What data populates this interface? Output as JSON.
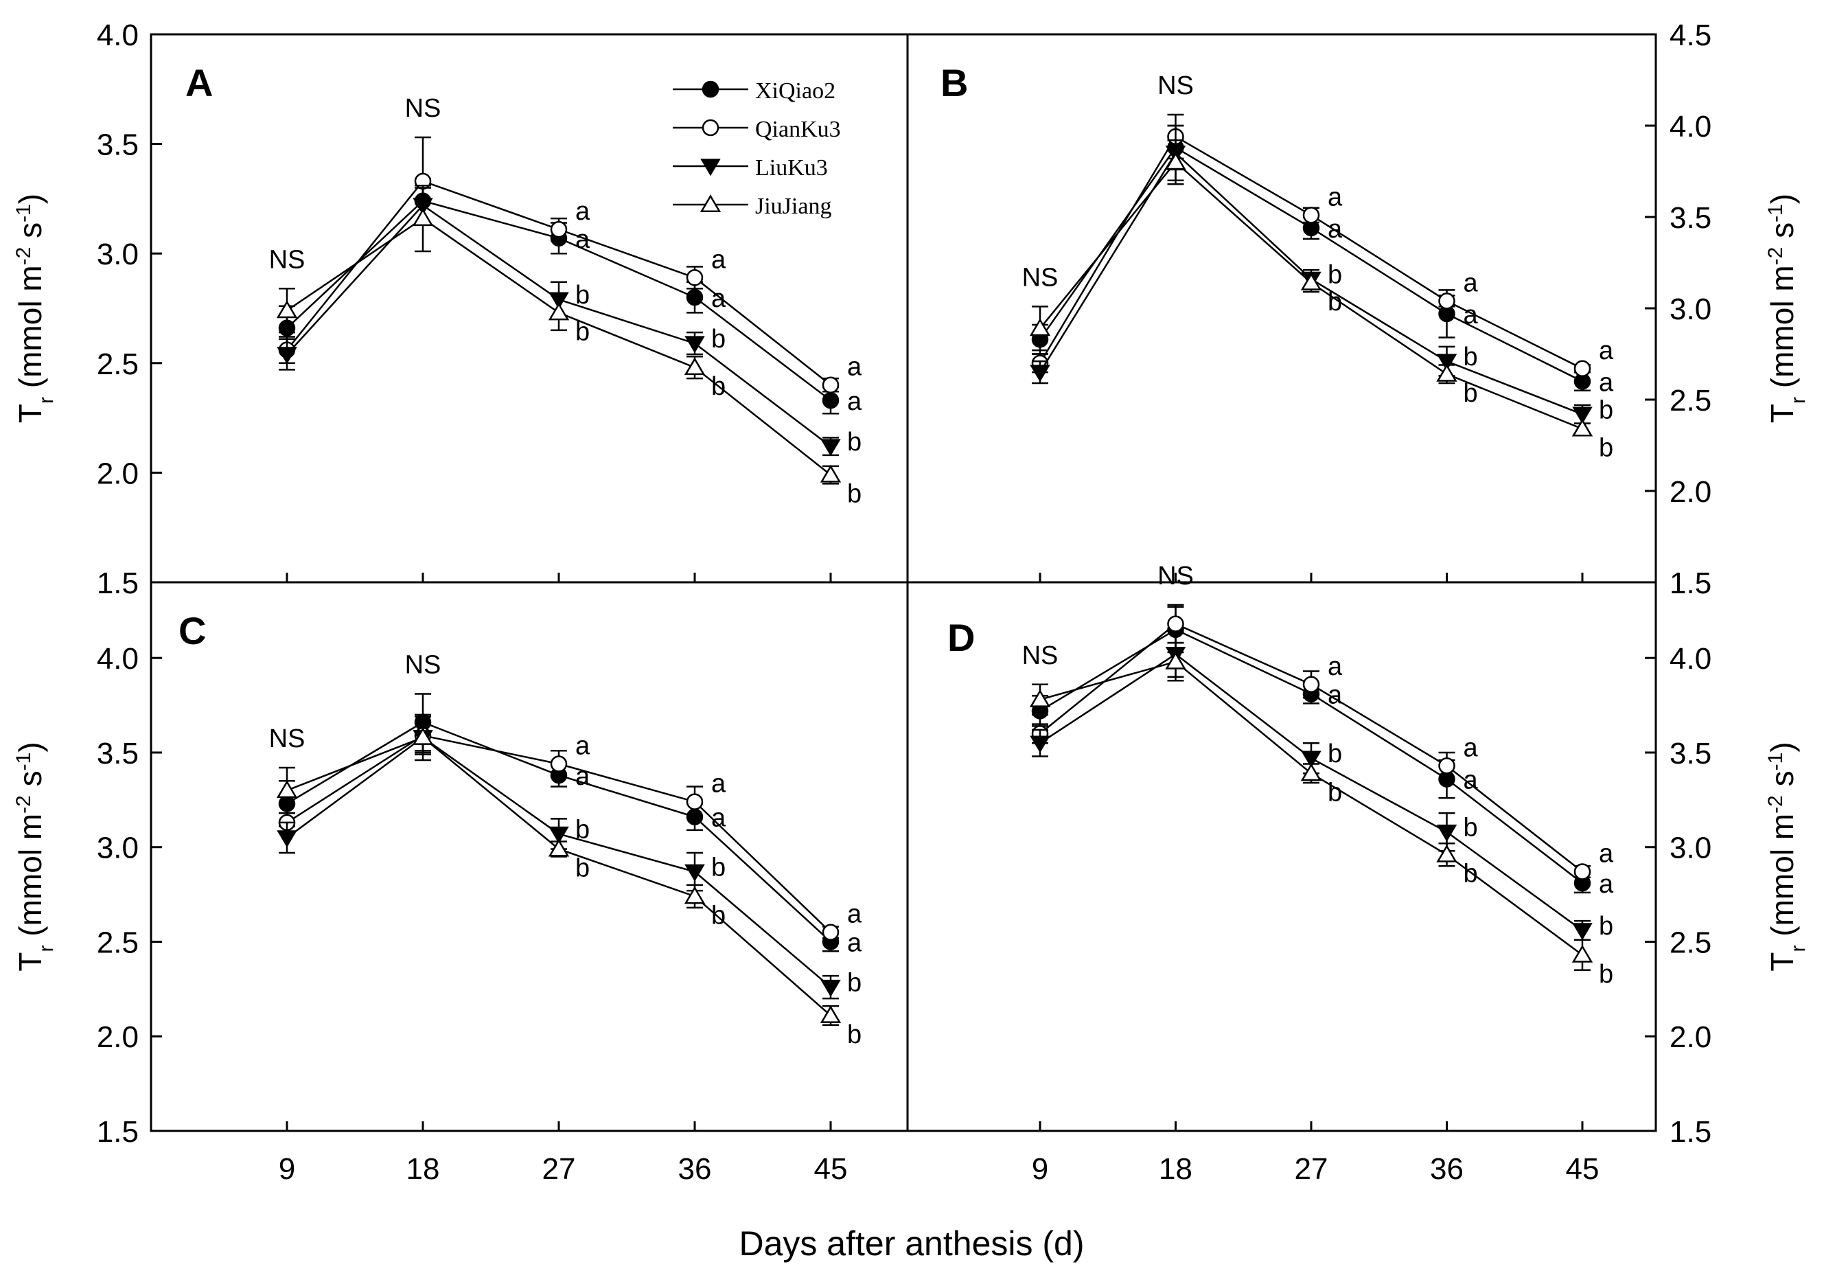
{
  "figure": {
    "xlabel": "Days after anthesis (d)",
    "ylabel_main": "T",
    "ylabel_sub": "r",
    "ylabel_unit_open": " (mmol m",
    "ylabel_exp1": "-2",
    "ylabel_mid": " s",
    "ylabel_exp2": "-1",
    "ylabel_close": ")",
    "colors": {
      "axis": "#000000",
      "line": "#000000",
      "marker_fill": "#000000",
      "background": "#ffffff"
    }
  },
  "legend": {
    "items": [
      {
        "label": "XiQiao2",
        "marker": "filled-circle"
      },
      {
        "label": "QianKu3",
        "marker": "open-circle"
      },
      {
        "label": "LiuKu3",
        "marker": "filled-triangle-down"
      },
      {
        "label": "JiuJiang",
        "marker": "open-triangle-up"
      }
    ]
  },
  "chart_data": [
    {
      "panel": "A",
      "type": "line",
      "x": [
        9,
        18,
        27,
        36,
        45
      ],
      "x_ticks": [
        "9",
        "18",
        "27",
        "36",
        "45"
      ],
      "ylim": [
        1.5,
        4.0
      ],
      "y_ticks": [
        "1.5",
        "2.0",
        "2.5",
        "3.0",
        "3.5",
        "4.0"
      ],
      "y_axis_side": "left",
      "series": [
        {
          "name": "XiQiao2",
          "values": [
            2.66,
            3.24,
            3.07,
            2.8,
            2.33
          ],
          "errors": [
            0.1,
            0.1,
            0.07,
            0.07,
            0.06
          ]
        },
        {
          "name": "QianKu3",
          "values": [
            2.56,
            3.33,
            3.11,
            2.89,
            2.4
          ],
          "errors": [
            0.06,
            0.2,
            0.05,
            0.05,
            0.03
          ]
        },
        {
          "name": "LiuKu3",
          "values": [
            2.54,
            3.22,
            2.79,
            2.59,
            2.12
          ],
          "errors": [
            0.07,
            0.08,
            0.08,
            0.05,
            0.04
          ]
        },
        {
          "name": "JiuJiang",
          "values": [
            2.74,
            3.16,
            2.73,
            2.48,
            1.99
          ],
          "errors": [
            0.1,
            0.15,
            0.08,
            0.05,
            0.04
          ]
        }
      ],
      "annotations": [
        {
          "x": 9,
          "text": "NS"
        },
        {
          "x": 18,
          "text": "NS"
        },
        {
          "x": 27,
          "series": "QianKu3",
          "text": "a"
        },
        {
          "x": 27,
          "series": "XiQiao2",
          "text": "a"
        },
        {
          "x": 27,
          "series": "LiuKu3",
          "text": "b"
        },
        {
          "x": 27,
          "series": "JiuJiang",
          "text": "b"
        },
        {
          "x": 36,
          "series": "QianKu3",
          "text": "a"
        },
        {
          "x": 36,
          "series": "XiQiao2",
          "text": "a"
        },
        {
          "x": 36,
          "series": "LiuKu3",
          "text": "b"
        },
        {
          "x": 36,
          "series": "JiuJiang",
          "text": "b"
        },
        {
          "x": 45,
          "series": "QianKu3",
          "text": "a"
        },
        {
          "x": 45,
          "series": "XiQiao2",
          "text": "a"
        },
        {
          "x": 45,
          "series": "LiuKu3",
          "text": "b"
        },
        {
          "x": 45,
          "series": "JiuJiang",
          "text": "b"
        }
      ]
    },
    {
      "panel": "B",
      "type": "line",
      "x": [
        9,
        18,
        27,
        36,
        45
      ],
      "x_ticks": [
        "9",
        "18",
        "27",
        "36",
        "45"
      ],
      "ylim": [
        1.5,
        4.5
      ],
      "y_ticks": [
        "1.5",
        "2.0",
        "2.5",
        "3.0",
        "3.5",
        "4.0",
        "4.5"
      ],
      "y_axis_side": "right",
      "series": [
        {
          "name": "XiQiao2",
          "values": [
            2.83,
            3.88,
            3.44,
            2.97,
            2.6
          ],
          "errors": [
            0.08,
            0.12,
            0.06,
            0.13,
            0.05
          ]
        },
        {
          "name": "QianKu3",
          "values": [
            2.7,
            3.94,
            3.51,
            3.04,
            2.67
          ],
          "errors": [
            0.05,
            0.12,
            0.04,
            0.03,
            0.02
          ]
        },
        {
          "name": "LiuKu3",
          "values": [
            2.65,
            3.85,
            3.16,
            2.71,
            2.42
          ],
          "errors": [
            0.06,
            0.15,
            0.05,
            0.08,
            0.05
          ]
        },
        {
          "name": "JiuJiang",
          "values": [
            2.89,
            3.8,
            3.14,
            2.64,
            2.34
          ],
          "errors": [
            0.12,
            0.12,
            0.05,
            0.05,
            0.03
          ]
        }
      ],
      "annotations": [
        {
          "x": 9,
          "text": "NS"
        },
        {
          "x": 18,
          "text": "NS"
        },
        {
          "x": 27,
          "series": "QianKu3",
          "text": "a"
        },
        {
          "x": 27,
          "series": "XiQiao2",
          "text": "a"
        },
        {
          "x": 27,
          "series": "LiuKu3",
          "text": "b"
        },
        {
          "x": 27,
          "series": "JiuJiang",
          "text": "b"
        },
        {
          "x": 36,
          "series": "QianKu3",
          "text": "a"
        },
        {
          "x": 36,
          "series": "XiQiao2",
          "text": "a"
        },
        {
          "x": 36,
          "series": "LiuKu3",
          "text": "b"
        },
        {
          "x": 36,
          "series": "JiuJiang",
          "text": "b"
        },
        {
          "x": 45,
          "series": "QianKu3",
          "text": "a"
        },
        {
          "x": 45,
          "series": "XiQiao2",
          "text": "a"
        },
        {
          "x": 45,
          "series": "LiuKu3",
          "text": "b"
        },
        {
          "x": 45,
          "series": "JiuJiang",
          "text": "b"
        }
      ]
    },
    {
      "panel": "C",
      "type": "line",
      "x": [
        9,
        18,
        27,
        36,
        45
      ],
      "x_ticks": [
        "9",
        "18",
        "27",
        "36",
        "45"
      ],
      "ylim": [
        1.5,
        4.4
      ],
      "y_ticks": [
        "1.5",
        "2.0",
        "2.5",
        "3.0",
        "3.5",
        "4.0"
      ],
      "y_axis_side": "left",
      "series": [
        {
          "name": "XiQiao2",
          "values": [
            3.23,
            3.66,
            3.38,
            3.16,
            2.5
          ],
          "errors": [
            0.12,
            0.15,
            0.06,
            0.07,
            0.05
          ]
        },
        {
          "name": "QianKu3",
          "values": [
            3.13,
            3.59,
            3.44,
            3.24,
            2.55
          ],
          "errors": [
            0.05,
            0.1,
            0.07,
            0.08,
            0.03
          ]
        },
        {
          "name": "LiuKu3",
          "values": [
            3.05,
            3.58,
            3.07,
            2.87,
            2.26
          ],
          "errors": [
            0.08,
            0.08,
            0.08,
            0.1,
            0.06
          ]
        },
        {
          "name": "JiuJiang",
          "values": [
            3.3,
            3.58,
            2.99,
            2.74,
            2.11
          ],
          "errors": [
            0.12,
            0.12,
            0.04,
            0.06,
            0.05
          ]
        }
      ],
      "annotations": [
        {
          "x": 9,
          "text": "NS"
        },
        {
          "x": 18,
          "text": "NS"
        },
        {
          "x": 27,
          "series": "QianKu3",
          "text": "a"
        },
        {
          "x": 27,
          "series": "XiQiao2",
          "text": "a"
        },
        {
          "x": 27,
          "series": "LiuKu3",
          "text": "b"
        },
        {
          "x": 27,
          "series": "JiuJiang",
          "text": "b"
        },
        {
          "x": 36,
          "series": "QianKu3",
          "text": "a"
        },
        {
          "x": 36,
          "series": "XiQiao2",
          "text": "a"
        },
        {
          "x": 36,
          "series": "LiuKu3",
          "text": "b"
        },
        {
          "x": 36,
          "series": "JiuJiang",
          "text": "b"
        },
        {
          "x": 45,
          "series": "QianKu3",
          "text": "a"
        },
        {
          "x": 45,
          "series": "XiQiao2",
          "text": "a"
        },
        {
          "x": 45,
          "series": "LiuKu3",
          "text": "b"
        },
        {
          "x": 45,
          "series": "JiuJiang",
          "text": "b"
        }
      ]
    },
    {
      "panel": "D",
      "type": "line",
      "x": [
        9,
        18,
        27,
        36,
        45
      ],
      "x_ticks": [
        "9",
        "18",
        "27",
        "36",
        "45"
      ],
      "ylim": [
        1.5,
        4.4
      ],
      "y_ticks": [
        "1.5",
        "2.0",
        "2.5",
        "3.0",
        "3.5",
        "4.0"
      ],
      "y_axis_side": "right",
      "series": [
        {
          "name": "XiQiao2",
          "values": [
            3.72,
            4.15,
            3.81,
            3.36,
            2.81
          ],
          "errors": [
            0.08,
            0.12,
            0.05,
            0.1,
            0.05
          ]
        },
        {
          "name": "QianKu3",
          "values": [
            3.6,
            4.18,
            3.86,
            3.43,
            2.87
          ],
          "errors": [
            0.05,
            0.1,
            0.07,
            0.07,
            0.03
          ]
        },
        {
          "name": "LiuKu3",
          "values": [
            3.55,
            4.02,
            3.47,
            3.08,
            2.56
          ],
          "errors": [
            0.07,
            0.12,
            0.08,
            0.1,
            0.05
          ]
        },
        {
          "name": "JiuJiang",
          "values": [
            3.78,
            3.98,
            3.39,
            2.96,
            2.43
          ],
          "errors": [
            0.08,
            0.1,
            0.05,
            0.06,
            0.08
          ]
        }
      ],
      "annotations": [
        {
          "x": 9,
          "text": "NS"
        },
        {
          "x": 18,
          "text": "NS"
        },
        {
          "x": 27,
          "series": "QianKu3",
          "text": "a"
        },
        {
          "x": 27,
          "series": "XiQiao2",
          "text": "a"
        },
        {
          "x": 27,
          "series": "LiuKu3",
          "text": "b"
        },
        {
          "x": 27,
          "series": "JiuJiang",
          "text": "b"
        },
        {
          "x": 36,
          "series": "QianKu3",
          "text": "a"
        },
        {
          "x": 36,
          "series": "XiQiao2",
          "text": "a"
        },
        {
          "x": 36,
          "series": "LiuKu3",
          "text": "b"
        },
        {
          "x": 36,
          "series": "JiuJiang",
          "text": "b"
        },
        {
          "x": 45,
          "series": "QianKu3",
          "text": "a"
        },
        {
          "x": 45,
          "series": "XiQiao2",
          "text": "a"
        },
        {
          "x": 45,
          "series": "LiuKu3",
          "text": "b"
        },
        {
          "x": 45,
          "series": "JiuJiang",
          "text": "b"
        }
      ]
    }
  ]
}
